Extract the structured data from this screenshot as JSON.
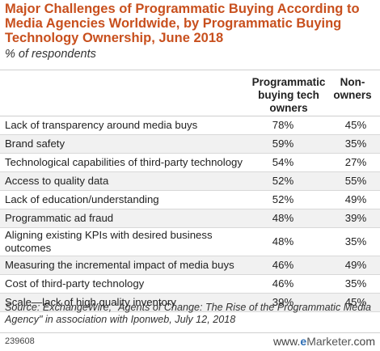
{
  "title": "Major Challenges of Programmatic Buying According to Media Agencies Worldwide, by Programmatic Buying Technology Ownership, June 2018",
  "subtitle": "% of respondents",
  "chart_data": {
    "type": "table",
    "title": "Major Challenges of Programmatic Buying According to Media Agencies Worldwide, by Programmatic Buying Technology Ownership, June 2018",
    "subtitle": "% of respondents",
    "columns": [
      "Programmatic buying tech owners",
      "Non-owners"
    ],
    "rows": [
      {
        "label": "Lack of transparency around media buys",
        "owners": "78%",
        "non_owners": "45%"
      },
      {
        "label": "Brand safety",
        "owners": "59%",
        "non_owners": "35%"
      },
      {
        "label": "Technological capabilities of third-party technology",
        "owners": "54%",
        "non_owners": "27%"
      },
      {
        "label": "Access to quality data",
        "owners": "52%",
        "non_owners": "55%"
      },
      {
        "label": "Lack of education/understanding",
        "owners": "52%",
        "non_owners": "49%"
      },
      {
        "label": "Programmatic ad fraud",
        "owners": "48%",
        "non_owners": "39%"
      },
      {
        "label": "Aligning existing KPIs with desired business outcomes",
        "owners": "48%",
        "non_owners": "35%"
      },
      {
        "label": "Measuring the incremental impact of media buys",
        "owners": "46%",
        "non_owners": "49%"
      },
      {
        "label": "Cost of third-party technology",
        "owners": "46%",
        "non_owners": "35%"
      },
      {
        "label": "Scale—lack of high quality inventory",
        "owners": "39%",
        "non_owners": "45%"
      }
    ]
  },
  "header": {
    "col1_line1": "Programmatic",
    "col1_line2": "buying tech",
    "col1_line3": "owners",
    "col2_line1": "Non-",
    "col2_line2": "owners"
  },
  "source": "Source: ExchangeWire, \"Agents of Change: The Rise of the Programmatic Media Agency\" in association with Iponweb, July 12, 2018",
  "footer": {
    "chart_id": "239608",
    "brand_www": "www.",
    "brand_e": "e",
    "brand_marketer": "Marketer",
    "brand_com": ".com"
  },
  "colors": {
    "title": "#c8501e",
    "row_alt": "#f1f1f1",
    "brand_e": "#2f6fb6"
  }
}
